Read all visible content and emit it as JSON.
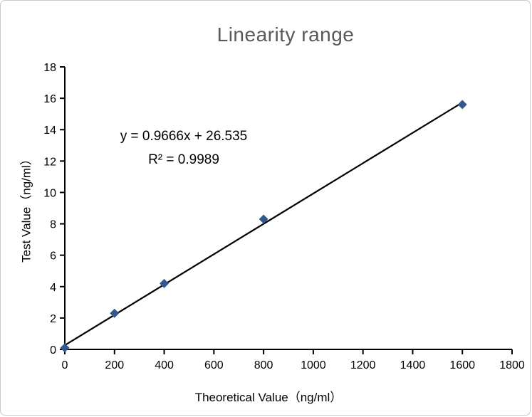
{
  "window": {
    "background_color": "#ffffff",
    "border_color": "#c9c9c9"
  },
  "chart": {
    "title": "Linearity range",
    "title_color": "#595959",
    "equation_line1": "y = 0.9666x + 26.535",
    "equation_line2": "R² = 0.9989",
    "x_axis_title": "Theoretical Value（ng/ml）",
    "y_axis_title": "Test Value（ng/ml）"
  },
  "chart_data": {
    "type": "scatter",
    "title": "Linearity range",
    "xlabel": "Theoretical Value（ng/ml）",
    "ylabel": "Test Value（ng/ml）",
    "x": [
      0,
      200,
      400,
      800,
      1600
    ],
    "y": [
      0.1,
      2.3,
      4.2,
      8.3,
      15.6
    ],
    "xlim": [
      0,
      1800
    ],
    "ylim": [
      0,
      18
    ],
    "xticks": [
      0,
      200,
      400,
      600,
      800,
      1000,
      1200,
      1400,
      1600,
      1800
    ],
    "yticks": [
      0,
      2,
      4,
      6,
      8,
      10,
      12,
      14,
      16,
      18
    ],
    "grid": false,
    "legend": null,
    "marker": {
      "shape": "diamond",
      "color": "#31598c",
      "size": 13
    },
    "axis_color": "#000000",
    "trendline": {
      "equation": "y = 0.9666x + 26.535",
      "r_squared": 0.9989,
      "color": "#000000",
      "slope_plotted": 0.009666,
      "intercept_plotted": 0.26535,
      "x_start": 0,
      "x_end": 1600
    }
  }
}
